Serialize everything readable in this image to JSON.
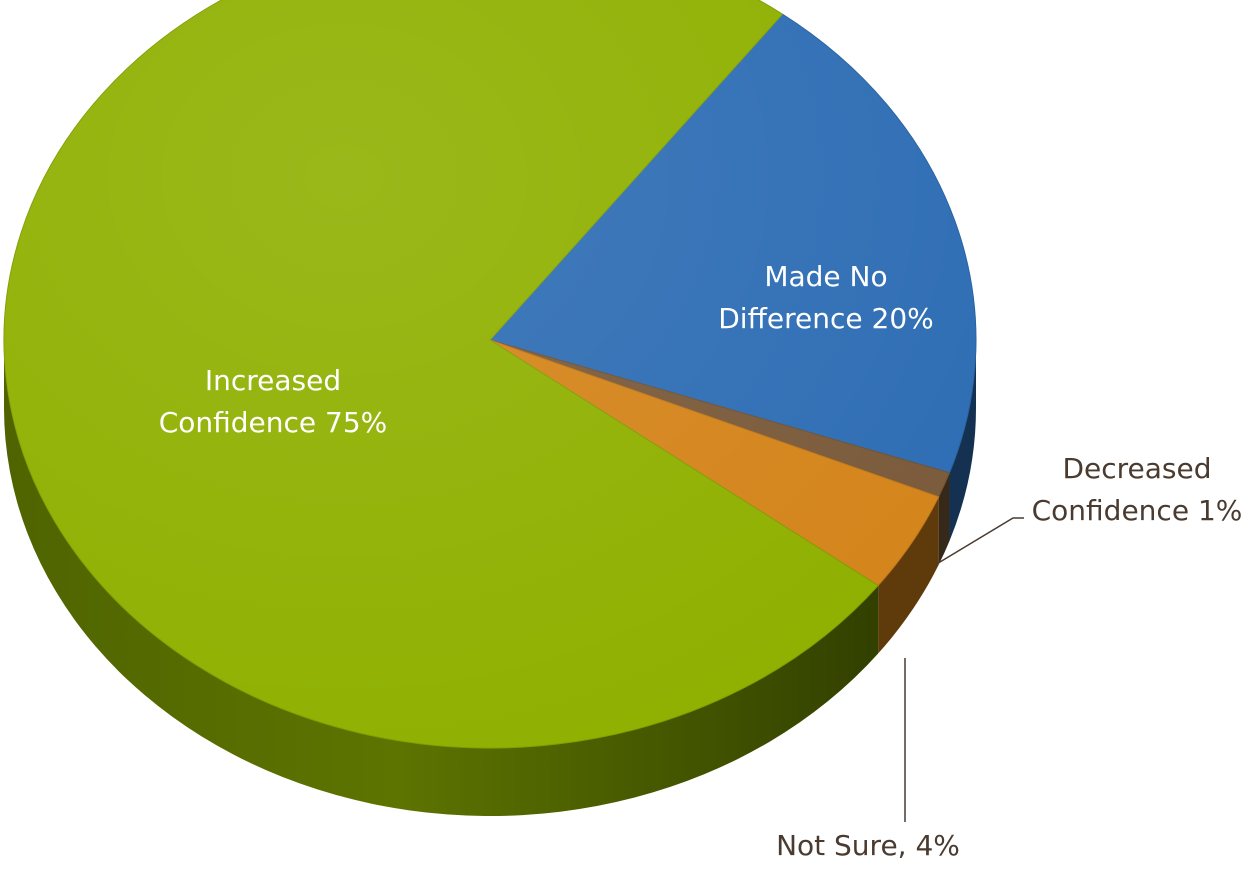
{
  "chart_data": {
    "type": "pie",
    "style": "3d",
    "title": "",
    "slices": [
      {
        "name": "Increased Confidence",
        "value": 75,
        "label_lines": [
          "Increased",
          "Confidence 75%"
        ],
        "color": "#8fb000",
        "label_placement": "inside"
      },
      {
        "name": "Made No Difference",
        "value": 20,
        "label_lines": [
          "Made No",
          "Difference 20%"
        ],
        "color": "#2e6db4",
        "label_placement": "inside"
      },
      {
        "name": "Decreased Confidence",
        "value": 1,
        "label_lines": [
          "Decreased",
          "Confidence 1%"
        ],
        "color": "#7a5a3a",
        "label_placement": "outside"
      },
      {
        "name": "Not Sure",
        "value": 4,
        "label_lines": [
          "Not Sure, 4%"
        ],
        "color": "#d4841a",
        "label_placement": "outside"
      }
    ]
  }
}
